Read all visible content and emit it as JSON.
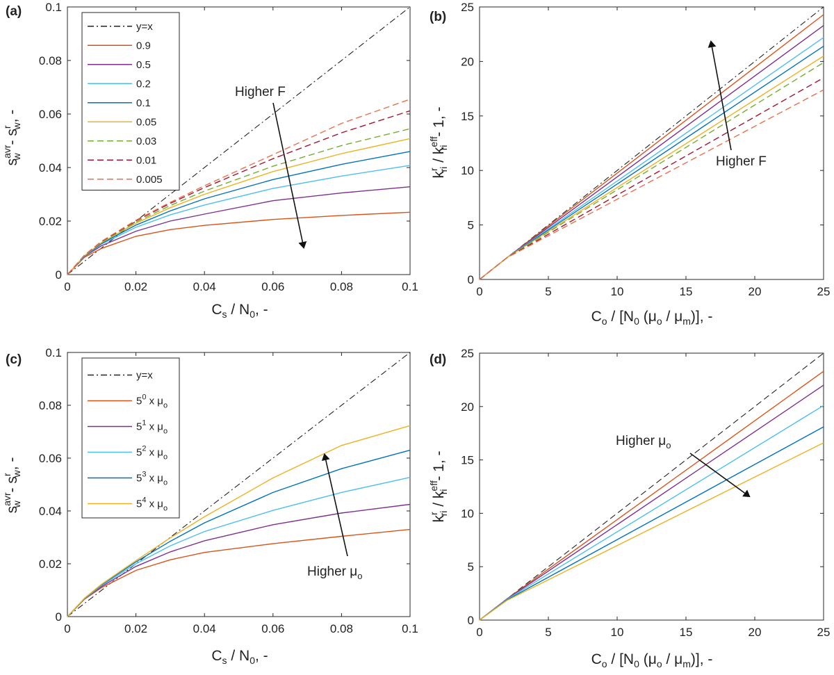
{
  "colors": {
    "c1": "#d95319",
    "c2": "#7e2f8e",
    "c3": "#4dbeee",
    "c4": "#0072bd",
    "c5": "#edb120",
    "c6": "#77ac30",
    "c7": "#a2142f",
    "c8": "#e8704a",
    "ref": "#222222"
  },
  "chart_data": [
    {
      "panel": "(a)",
      "type": "line",
      "xlabel_main": "C",
      "xlabel_sub": "s",
      "xlabel_rest": " / N",
      "xlabel_sub2": "0",
      "xlabel_tail": ", -",
      "xlim": [
        0,
        0.1
      ],
      "ylim": [
        0,
        0.1
      ],
      "xticks": [
        0,
        0.02,
        0.04,
        0.06,
        0.08,
        0.1
      ],
      "xticklabels": [
        "0",
        "0.02",
        "0.04",
        "0.06",
        "0.08",
        "0.1"
      ],
      "yticks": [
        0,
        0.02,
        0.04,
        0.06,
        0.08,
        0.1
      ],
      "yticklabels": [
        "0",
        "0.02",
        "0.04",
        "0.06",
        "0.08",
        "0.1"
      ],
      "annotation": "Higher F",
      "series": [
        {
          "name": "y=x",
          "style": "dashdot",
          "color": "ref",
          "x": [
            0,
            0.1
          ],
          "y": [
            0,
            0.1
          ]
        },
        {
          "name": "0.9",
          "style": "solid",
          "color": "c1",
          "x": [
            0,
            0.005,
            0.01,
            0.02,
            0.03,
            0.04,
            0.06,
            0.08,
            0.1
          ],
          "y": [
            0,
            0.0065,
            0.0098,
            0.0143,
            0.0168,
            0.0184,
            0.0206,
            0.0221,
            0.0233
          ]
        },
        {
          "name": "0.5",
          "style": "solid",
          "color": "c2",
          "x": [
            0,
            0.005,
            0.01,
            0.02,
            0.03,
            0.04,
            0.06,
            0.08,
            0.1
          ],
          "y": [
            0,
            0.0068,
            0.0108,
            0.0162,
            0.02,
            0.0226,
            0.0276,
            0.0305,
            0.0328
          ]
        },
        {
          "name": "0.2",
          "style": "solid",
          "color": "c3",
          "x": [
            0,
            0.005,
            0.01,
            0.02,
            0.03,
            0.04,
            0.06,
            0.08,
            0.1
          ],
          "y": [
            0,
            0.0069,
            0.0114,
            0.0177,
            0.0223,
            0.026,
            0.0322,
            0.0368,
            0.0408
          ]
        },
        {
          "name": "0.1",
          "style": "solid",
          "color": "c4",
          "x": [
            0,
            0.005,
            0.01,
            0.02,
            0.03,
            0.04,
            0.06,
            0.08,
            0.1
          ],
          "y": [
            0,
            0.007,
            0.0117,
            0.0185,
            0.0238,
            0.0283,
            0.0355,
            0.0412,
            0.046
          ]
        },
        {
          "name": "0.05",
          "style": "solid",
          "color": "c5",
          "x": [
            0,
            0.005,
            0.01,
            0.02,
            0.03,
            0.04,
            0.06,
            0.08,
            0.1
          ],
          "y": [
            0,
            0.0071,
            0.012,
            0.0192,
            0.025,
            0.03,
            0.0385,
            0.0452,
            0.0508
          ]
        },
        {
          "name": "0.03",
          "style": "dashed",
          "color": "c6",
          "x": [
            0,
            0.005,
            0.01,
            0.02,
            0.03,
            0.04,
            0.06,
            0.08,
            0.1
          ],
          "y": [
            0,
            0.0072,
            0.0122,
            0.0196,
            0.0258,
            0.0312,
            0.0405,
            0.0482,
            0.0545
          ]
        },
        {
          "name": "0.01",
          "style": "dashed",
          "color": "c7",
          "x": [
            0,
            0.005,
            0.01,
            0.02,
            0.03,
            0.04,
            0.06,
            0.08,
            0.1
          ],
          "y": [
            0,
            0.0073,
            0.0124,
            0.0201,
            0.0266,
            0.0325,
            0.0433,
            0.053,
            0.0612
          ]
        },
        {
          "name": "0.005",
          "style": "dashed",
          "color": "c8",
          "x": [
            0,
            0.005,
            0.01,
            0.02,
            0.03,
            0.04,
            0.06,
            0.08,
            0.1
          ],
          "y": [
            0,
            0.0073,
            0.0125,
            0.0203,
            0.027,
            0.0332,
            0.0448,
            0.0565,
            0.0655
          ]
        }
      ]
    },
    {
      "panel": "(b)",
      "type": "line",
      "xlim": [
        0,
        25
      ],
      "ylim": [
        0,
        25
      ],
      "xticks": [
        0,
        5,
        10,
        15,
        20,
        25
      ],
      "xticklabels": [
        "0",
        "5",
        "10",
        "15",
        "20",
        "25"
      ],
      "yticks": [
        0,
        5,
        10,
        15,
        20,
        25
      ],
      "yticklabels": [
        "0",
        "5",
        "10",
        "15",
        "20",
        "25"
      ],
      "annotation": "Higher F",
      "series": [
        {
          "name": "y=x",
          "style": "dashdot",
          "color": "ref",
          "x": [
            0,
            25
          ],
          "y": [
            0,
            25
          ]
        },
        {
          "name": "0.9",
          "style": "solid",
          "color": "c1",
          "x": [
            0,
            2,
            25
          ],
          "y": [
            0,
            2.0,
            24.3
          ]
        },
        {
          "name": "0.5",
          "style": "solid",
          "color": "c2",
          "x": [
            0,
            2,
            25
          ],
          "y": [
            0,
            2.0,
            23.3
          ]
        },
        {
          "name": "0.2",
          "style": "solid",
          "color": "c3",
          "x": [
            0,
            2,
            25
          ],
          "y": [
            0,
            2.0,
            22.2
          ]
        },
        {
          "name": "0.1",
          "style": "solid",
          "color": "c4",
          "x": [
            0,
            2,
            25
          ],
          "y": [
            0,
            2.0,
            21.4
          ]
        },
        {
          "name": "0.05",
          "style": "solid",
          "color": "c5",
          "x": [
            0,
            2,
            25
          ],
          "y": [
            0,
            2.0,
            20.5
          ]
        },
        {
          "name": "0.03",
          "style": "dashed",
          "color": "c6",
          "x": [
            0,
            2,
            25
          ],
          "y": [
            0,
            2.0,
            19.9
          ]
        },
        {
          "name": "0.01",
          "style": "dashed",
          "color": "c7",
          "x": [
            0,
            2,
            25
          ],
          "y": [
            0,
            2.0,
            18.5
          ]
        },
        {
          "name": "0.005",
          "style": "dashed",
          "color": "c8",
          "x": [
            0,
            2,
            25
          ],
          "y": [
            0,
            2.0,
            17.4
          ]
        }
      ]
    },
    {
      "panel": "(c)",
      "type": "line",
      "xlim": [
        0,
        0.1
      ],
      "ylim": [
        0,
        0.1
      ],
      "xticks": [
        0,
        0.02,
        0.04,
        0.06,
        0.08,
        0.1
      ],
      "xticklabels": [
        "0",
        "0.02",
        "0.04",
        "0.06",
        "0.08",
        "0.1"
      ],
      "yticks": [
        0,
        0.02,
        0.04,
        0.06,
        0.08,
        0.1
      ],
      "yticklabels": [
        "0",
        "0.02",
        "0.04",
        "0.06",
        "0.08",
        "0.1"
      ],
      "annotation": "Higher μo",
      "series": [
        {
          "name": "y=x",
          "style": "dashdot",
          "color": "ref",
          "x": [
            0,
            0.1
          ],
          "y": [
            0,
            0.1
          ]
        },
        {
          "name": "5^0 x μo",
          "base": "5",
          "exp": "0",
          "style": "solid",
          "color": "c1",
          "x": [
            0,
            0.005,
            0.01,
            0.02,
            0.03,
            0.04,
            0.06,
            0.08,
            0.1
          ],
          "y": [
            0,
            0.0066,
            0.011,
            0.0175,
            0.0215,
            0.0243,
            0.0276,
            0.0304,
            0.033
          ]
        },
        {
          "name": "5^1 x μo",
          "base": "5",
          "exp": "1",
          "style": "solid",
          "color": "c2",
          "x": [
            0,
            0.005,
            0.01,
            0.02,
            0.03,
            0.04,
            0.06,
            0.08,
            0.1
          ],
          "y": [
            0,
            0.0067,
            0.0114,
            0.019,
            0.0245,
            0.0287,
            0.0348,
            0.0392,
            0.0425
          ]
        },
        {
          "name": "5^2 x μo",
          "base": "5",
          "exp": "2",
          "style": "solid",
          "color": "c3",
          "x": [
            0,
            0.005,
            0.01,
            0.02,
            0.03,
            0.04,
            0.06,
            0.08,
            0.1
          ],
          "y": [
            0,
            0.0068,
            0.0118,
            0.02,
            0.0268,
            0.0322,
            0.0402,
            0.047,
            0.0527
          ]
        },
        {
          "name": "5^3 x μo",
          "base": "5",
          "exp": "3",
          "style": "solid",
          "color": "c4",
          "x": [
            0,
            0.005,
            0.01,
            0.02,
            0.03,
            0.04,
            0.06,
            0.08,
            0.1
          ],
          "y": [
            0,
            0.0069,
            0.0121,
            0.0207,
            0.0285,
            0.0355,
            0.047,
            0.056,
            0.063
          ]
        },
        {
          "name": "5^4 x μo",
          "base": "5",
          "exp": "4",
          "style": "solid",
          "color": "c5",
          "x": [
            0,
            0.005,
            0.01,
            0.02,
            0.03,
            0.04,
            0.06,
            0.08,
            0.1
          ],
          "y": [
            0,
            0.007,
            0.0123,
            0.0212,
            0.0298,
            0.0378,
            0.0525,
            0.0648,
            0.0723
          ]
        }
      ]
    },
    {
      "panel": "(d)",
      "type": "line",
      "xlim": [
        0,
        25
      ],
      "ylim": [
        0,
        25
      ],
      "xticks": [
        0,
        5,
        10,
        15,
        20,
        25
      ],
      "xticklabels": [
        "0",
        "5",
        "10",
        "15",
        "20",
        "25"
      ],
      "yticks": [
        0,
        5,
        10,
        15,
        20,
        25
      ],
      "yticklabels": [
        "0",
        "5",
        "10",
        "15",
        "20",
        "25"
      ],
      "annotation": "Higher μo",
      "series": [
        {
          "name": "y=x",
          "style": "dashed",
          "color": "ref",
          "x": [
            0,
            25
          ],
          "y": [
            0,
            25
          ]
        },
        {
          "name": "5^0 x μo",
          "style": "solid",
          "color": "c1",
          "x": [
            0,
            2,
            25
          ],
          "y": [
            0,
            2.0,
            23.3
          ]
        },
        {
          "name": "5^1 x μo",
          "style": "solid",
          "color": "c2",
          "x": [
            0,
            2,
            25
          ],
          "y": [
            0,
            1.98,
            22.0
          ]
        },
        {
          "name": "5^2 x μo",
          "style": "solid",
          "color": "c3",
          "x": [
            0,
            2,
            25
          ],
          "y": [
            0,
            1.95,
            20.1
          ]
        },
        {
          "name": "5^3 x μo",
          "style": "solid",
          "color": "c4",
          "x": [
            0,
            2,
            25
          ],
          "y": [
            0,
            1.9,
            18.1
          ]
        },
        {
          "name": "5^4 x μo",
          "style": "solid",
          "color": "c5",
          "x": [
            0,
            2,
            25
          ],
          "y": [
            0,
            1.85,
            16.6
          ]
        }
      ]
    }
  ],
  "labels": {
    "panel_a": "(a)",
    "panel_b": "(b)",
    "panel_c": "(c)",
    "panel_d": "(d)",
    "xlab_ac": {
      "C": "C",
      "s": "s",
      "mid": " / N",
      "zero": "0",
      "end": ", -"
    },
    "xlab_bd": {
      "C": "C",
      "o": "o",
      "mid": " / [N",
      "zero": "0",
      "open": " (",
      "mu": "μ",
      "o2": "o",
      "slash": " / ",
      "mu2": "μ",
      "m": "m",
      "end": ")], -"
    },
    "ylab_ac": {
      "s": "s",
      "avr": "avr",
      "w1": "w",
      "dash": " - s",
      "r": "r",
      "w2": "w",
      "end": ", -"
    },
    "ylab_bd": {
      "k": "k",
      "r": "r",
      "ri1": "ri",
      "slash": " / k",
      "eff": "eff",
      "ri2": "ri",
      "end": " - 1, -"
    },
    "annot_F": "Higher F",
    "annot_mu_main": "Higher ",
    "annot_mu_sym": "μ",
    "annot_mu_sub": "o",
    "legend_x_mult": " x ",
    "legend_mu": "μ",
    "legend_mu_sub": "o"
  }
}
